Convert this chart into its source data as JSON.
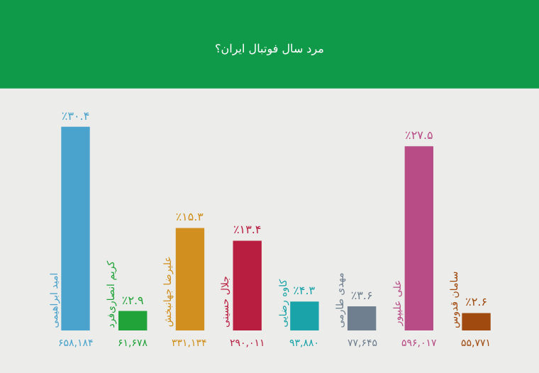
{
  "chart_data": {
    "type": "bar",
    "title": "مرد سال فوتبال ایران؟",
    "categories": [
      "امید ابراهیمی",
      "کریم انصاری‌فرد",
      "علیرضا جهانبخش",
      "جلال حسینی",
      "کاوه رضایی",
      "مهدی طارمی",
      "علی علیپور",
      "سامان قدوس"
    ],
    "values": [
      30.4,
      2.9,
      15.3,
      13.4,
      4.3,
      3.6,
      27.5,
      2.6
    ],
    "colors": [
      "#4aa3cc",
      "#22a33a",
      "#d08f1e",
      "#b81e40",
      "#1aa3a8",
      "#6f7f8f",
      "#b84c86",
      "#a04a10"
    ],
    "value_labels": [
      "٪۳۰.۴",
      "٪۲.۹",
      "٪۱۵.۳",
      "٪۱۳.۴",
      "٪۴.۳",
      "٪۳.۶",
      "٪۲۷.۵",
      "٪۲.۶"
    ],
    "annotations": [
      "۶۵۸,۱۸۴",
      "۶۱,۶۷۸",
      "۳۳۱,۱۳۴",
      "۲۹۰,۰۱۱",
      "۹۳,۸۸۰",
      "۷۷,۶۴۵",
      "۵۹۶,۰۱۷",
      "۵۵,۷۷۱"
    ]
  }
}
